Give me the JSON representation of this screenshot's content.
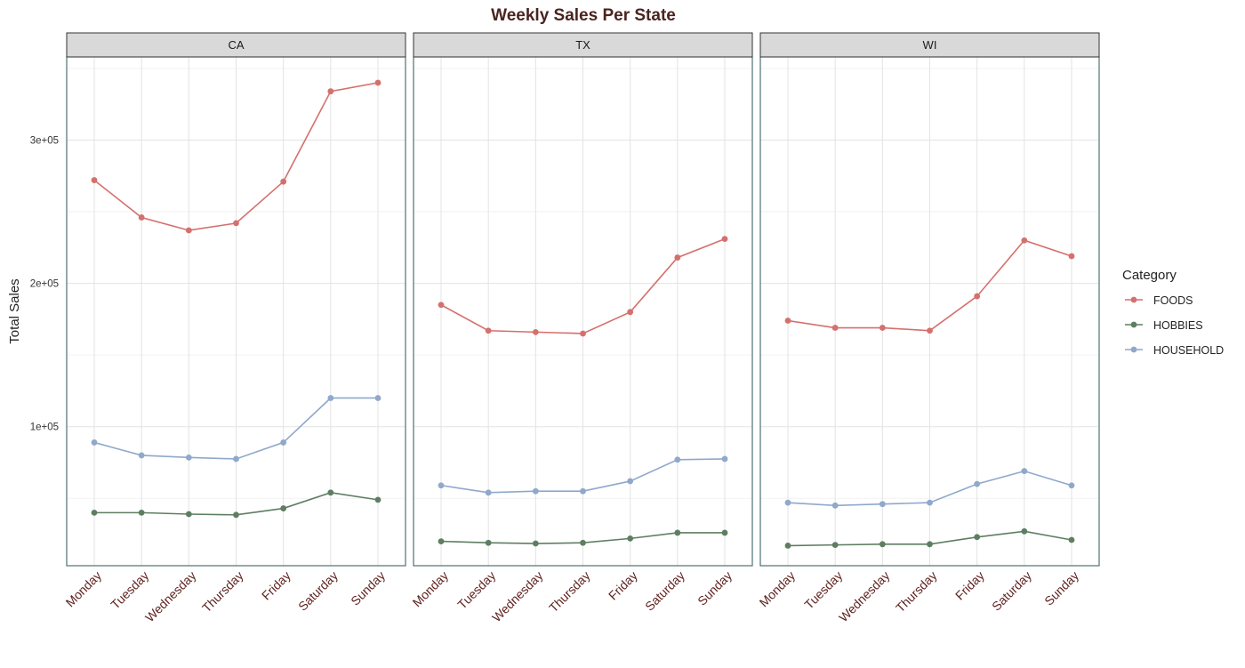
{
  "chart_data": {
    "type": "line",
    "title": "Weekly Sales Per State",
    "xlabel": "",
    "ylabel": "Total Sales",
    "categories": [
      "Monday",
      "Tuesday",
      "Wednesday",
      "Thursday",
      "Friday",
      "Saturday",
      "Sunday"
    ],
    "ylim": [
      3000,
      358000
    ],
    "yticks": [
      100000,
      200000,
      300000
    ],
    "ytick_labels": [
      "1e+05",
      "2e+05",
      "3e+05"
    ],
    "grid": true,
    "legend": {
      "title": "Category",
      "placement": "right",
      "entries": [
        "FOODS",
        "HOBBIES",
        "HOUSEHOLD"
      ]
    },
    "colors": {
      "FOODS": "#D4706D",
      "HOBBIES": "#5E7E62",
      "HOUSEHOLD": "#8FA8CB",
      "title": "#4A2420",
      "xtick": "#5C1F1C",
      "strip_fill": "#D9D9D9",
      "panel_border": "#3F6464"
    },
    "facets": [
      {
        "label": "CA",
        "series": [
          {
            "name": "FOODS",
            "values": [
              272000,
              246000,
              237000,
              242000,
              271000,
              334000,
              340000
            ]
          },
          {
            "name": "HOBBIES",
            "values": [
              40000,
              40000,
              39000,
              38500,
              43000,
              54000,
              49000
            ]
          },
          {
            "name": "HOUSEHOLD",
            "values": [
              89000,
              80000,
              78500,
              77500,
              89000,
              120000,
              120000
            ]
          }
        ]
      },
      {
        "label": "TX",
        "series": [
          {
            "name": "FOODS",
            "values": [
              185000,
              167000,
              166000,
              165000,
              180000,
              218000,
              231000
            ]
          },
          {
            "name": "HOBBIES",
            "values": [
              20000,
              19000,
              18500,
              19000,
              22000,
              26000,
              26000
            ]
          },
          {
            "name": "HOUSEHOLD",
            "values": [
              59000,
              54000,
              55000,
              55000,
              62000,
              77000,
              77500
            ]
          }
        ]
      },
      {
        "label": "WI",
        "series": [
          {
            "name": "FOODS",
            "values": [
              174000,
              169000,
              169000,
              167000,
              191000,
              230000,
              219000
            ]
          },
          {
            "name": "HOBBIES",
            "values": [
              17000,
              17500,
              18000,
              18000,
              23000,
              27000,
              21000
            ]
          },
          {
            "name": "HOUSEHOLD",
            "values": [
              47000,
              45000,
              46000,
              47000,
              60000,
              69000,
              59000
            ]
          }
        ]
      }
    ]
  }
}
